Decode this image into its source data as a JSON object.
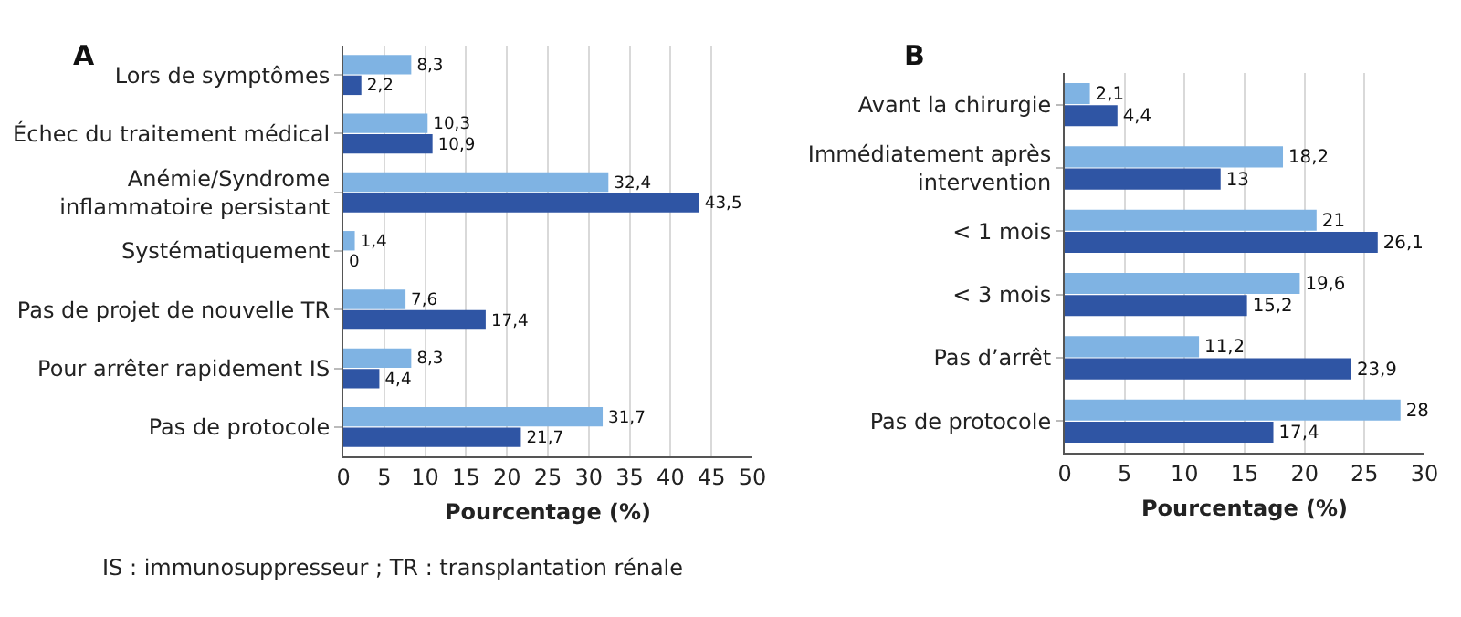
{
  "chart_data": [
    {
      "type": "bar",
      "orientation": "horizontal",
      "title": "A",
      "xlabel": "Pourcentage (%)",
      "categories": [
        "Lors de symptômes",
        "Échec du traitement médical",
        "Anémie/Syndrome\ninflammatoire persistant",
        "Systématiquement",
        "Pas de projet de nouvelle TR",
        "Pour arrêter rapidement IS",
        "Pas de protocole"
      ],
      "series": [
        {
          "color": "#7fb3e3",
          "values": [
            8.3,
            10.3,
            32.4,
            1.4,
            7.6,
            8.3,
            31.7
          ],
          "value_labels": [
            "8,3",
            "10,3",
            "32,4",
            "1,4",
            "7,6",
            "8,3",
            "31,7"
          ]
        },
        {
          "color": "#2f55a4",
          "values": [
            2.2,
            10.9,
            43.5,
            0,
            17.4,
            4.4,
            21.7
          ],
          "value_labels": [
            "2,2",
            "10,9",
            "43,5",
            "0",
            "17,4",
            "4,4",
            "21,7"
          ]
        }
      ],
      "xlim": [
        0,
        50
      ],
      "xticks": [
        0,
        5,
        10,
        15,
        20,
        25,
        30,
        35,
        40,
        45,
        50
      ],
      "grid": "x",
      "annotations": [
        "IS : immunosuppresseur ; TR : transplantation rénale"
      ]
    },
    {
      "type": "bar",
      "orientation": "horizontal",
      "title": "B",
      "xlabel": "Pourcentage (%)",
      "categories": [
        "Avant la chirurgie",
        "Immédiatement après\nintervention",
        "< 1 mois",
        "< 3 mois",
        "Pas d’arrêt",
        "Pas de protocole"
      ],
      "series": [
        {
          "color": "#7fb3e3",
          "values": [
            2.1,
            18.2,
            21,
            19.6,
            11.2,
            28
          ],
          "value_labels": [
            "2,1",
            "18,2",
            "21",
            "19,6",
            "11,2",
            "28"
          ]
        },
        {
          "color": "#2f55a4",
          "values": [
            4.4,
            13,
            26.1,
            15.2,
            23.9,
            17.4
          ],
          "value_labels": [
            "4,4",
            "13",
            "26,1",
            "15,2",
            "23,9",
            "17,4"
          ]
        }
      ],
      "xlim": [
        0,
        30
      ],
      "xticks": [
        0,
        5,
        10,
        15,
        20,
        25,
        30
      ],
      "grid": "x"
    }
  ]
}
